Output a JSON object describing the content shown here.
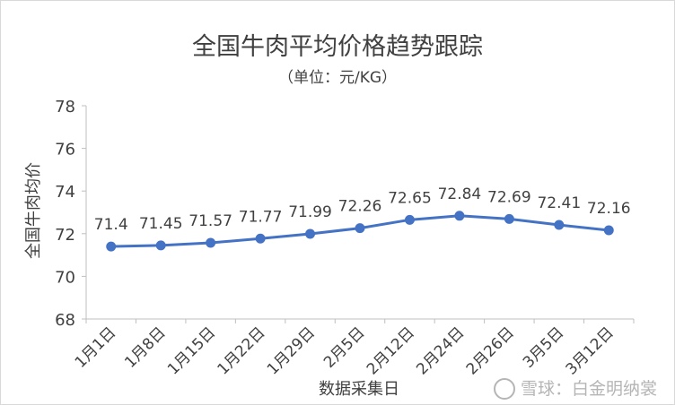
{
  "chart_data": {
    "type": "line",
    "title": "全国牛肉平均价格趋势跟踪",
    "subtitle": "（单位：元/KG）",
    "xlabel": "数据采集日",
    "ylabel": "全国牛肉均价",
    "categories": [
      "1月1日",
      "1月8日",
      "1月15日",
      "1月22日",
      "1月29日",
      "2月5日",
      "2月12日",
      "2月24日",
      "2月26日",
      "3月5日",
      "3月12日"
    ],
    "series": [
      {
        "values": [
          71.4,
          71.45,
          71.57,
          71.77,
          71.99,
          72.26,
          72.65,
          72.84,
          72.69,
          72.41,
          72.16
        ]
      }
    ],
    "data_labels": [
      "71.4",
      "71.45",
      "71.57",
      "71.77",
      "71.99",
      "72.26",
      "72.65",
      "72.84",
      "72.69",
      "72.41",
      "72.16"
    ],
    "ylim": [
      68,
      78
    ],
    "yticks": [
      "68",
      "70",
      "72",
      "74",
      "76",
      "78"
    ],
    "grid": false,
    "line_color": "#4472c4"
  },
  "watermark": {
    "text": "雪球：白金明纳裳",
    "icon": "snowball-logo-icon"
  }
}
